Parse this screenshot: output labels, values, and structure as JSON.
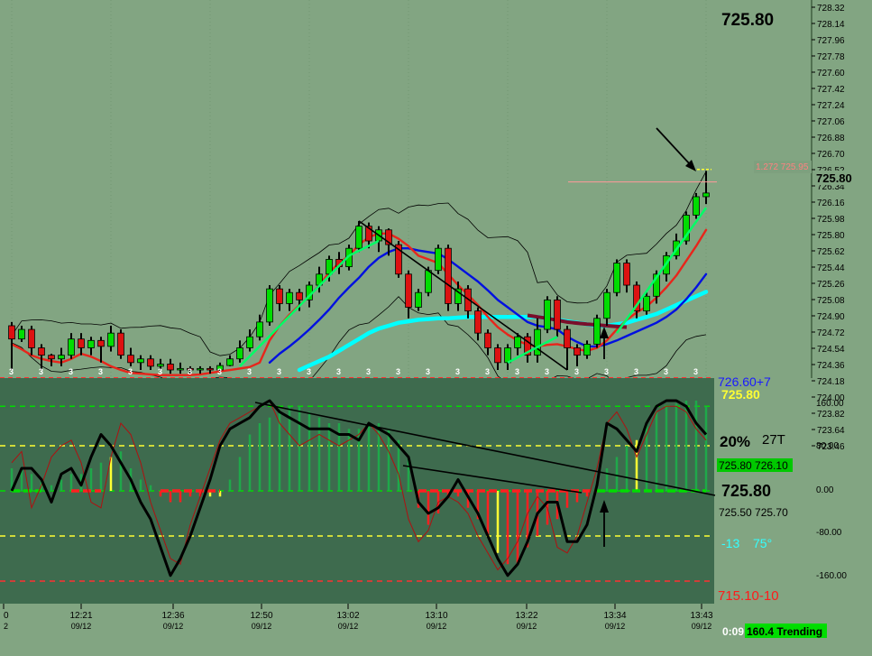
{
  "header": {
    "last_price": "725.80"
  },
  "colors": {
    "background": "#82a582",
    "indicator_bg": "#3e6b4e",
    "bull": "#00dd00",
    "bear": "#dd1111",
    "fast_ma": "#e8251b",
    "mid_ma": "#0010e0",
    "slow_ma": "#00ffff",
    "maroon_ma": "#7a0e2a",
    "trend_line": "#00ff66"
  },
  "price_axis": {
    "ticks": [
      "728.32",
      "728.14",
      "727.96",
      "727.78",
      "727.60",
      "727.42",
      "727.24",
      "727.06",
      "726.88",
      "726.70",
      "726.52",
      "726.34",
      "726.16",
      "725.98",
      "725.80",
      "725.62",
      "725.44",
      "725.26",
      "725.08",
      "724.90",
      "724.72",
      "724.54",
      "724.36",
      "724.18",
      "724.00",
      "723.82",
      "723.64",
      "723.46"
    ],
    "current_marker": "725.80",
    "fib_label": "1.272 725.95"
  },
  "osc_axis": {
    "ticks": [
      "160.00",
      "80.00",
      "0.00",
      "-80.00",
      "-160.00"
    ]
  },
  "time_axis": {
    "labels": [
      {
        "time": "0",
        "date": "2"
      },
      {
        "time": "12:21",
        "date": "09/12"
      },
      {
        "time": "12:36",
        "date": "09/12"
      },
      {
        "time": "12:50",
        "date": "09/12"
      },
      {
        "time": "13:02",
        "date": "09/12"
      },
      {
        "time": "13:10",
        "date": "09/12"
      },
      {
        "time": "13:22",
        "date": "09/12"
      },
      {
        "time": "13:34",
        "date": "09/12"
      },
      {
        "time": "13:43",
        "date": "09/12"
      }
    ]
  },
  "info_panel": {
    "line1": "726.60+7",
    "line2": "725.80",
    "line3_pct": "20%",
    "line3_t": "27T",
    "line4": "725.80 726.10",
    "line5": "725.80",
    "line6": "725.50 725.70",
    "line7_a": "-13",
    "line7_b": "75°",
    "line8": "715.10-10"
  },
  "status_bar": {
    "timer": "0:09",
    "trend": "160.4 Trending"
  },
  "chart_data": {
    "type": "bar",
    "panels": [
      {
        "name": "price",
        "ylim": [
          723.4,
          728.32
        ],
        "candles": [
          [
            724.0,
            723.82,
            724.05,
            723.4
          ],
          [
            723.82,
            723.95,
            724.0,
            723.78
          ],
          [
            723.95,
            723.7,
            724.0,
            723.6
          ],
          [
            723.7,
            723.6,
            723.75,
            723.4
          ],
          [
            723.6,
            723.55,
            723.62,
            723.45
          ],
          [
            723.55,
            723.6,
            723.7,
            723.45
          ],
          [
            723.6,
            723.82,
            723.9,
            723.55
          ],
          [
            723.82,
            723.7,
            723.9,
            723.6
          ],
          [
            723.7,
            723.8,
            723.85,
            723.6
          ],
          [
            723.8,
            723.72,
            723.85,
            723.5
          ],
          [
            723.72,
            723.9,
            724.0,
            723.65
          ],
          [
            723.9,
            723.6,
            723.95,
            723.55
          ],
          [
            723.6,
            723.5,
            723.7,
            723.45
          ],
          [
            723.5,
            723.55,
            723.6,
            723.4
          ],
          [
            723.55,
            723.45,
            723.6,
            723.4
          ],
          [
            723.45,
            723.48,
            723.55,
            723.4
          ],
          [
            723.48,
            723.4,
            723.55,
            723.35
          ],
          [
            723.4,
            723.42,
            723.5,
            723.35
          ],
          [
            723.42,
            723.4,
            723.45,
            723.35
          ],
          [
            723.4,
            723.42,
            723.45,
            723.35
          ],
          [
            723.42,
            723.4,
            723.45,
            723.35
          ],
          [
            723.4,
            723.46,
            723.5,
            723.38
          ],
          [
            723.46,
            723.55,
            723.6,
            723.45
          ],
          [
            723.55,
            723.7,
            723.8,
            723.5
          ],
          [
            723.7,
            723.85,
            723.95,
            723.65
          ],
          [
            723.85,
            724.05,
            724.15,
            723.8
          ],
          [
            724.05,
            724.5,
            724.55,
            724.0
          ],
          [
            724.5,
            724.3,
            724.55,
            724.2
          ],
          [
            724.3,
            724.45,
            724.5,
            724.2
          ],
          [
            724.45,
            724.35,
            724.5,
            724.2
          ],
          [
            724.35,
            724.55,
            724.6,
            724.25
          ],
          [
            724.55,
            724.7,
            724.8,
            724.45
          ],
          [
            724.7,
            724.9,
            724.95,
            724.6
          ],
          [
            724.9,
            724.8,
            725.0,
            724.7
          ],
          [
            724.8,
            725.05,
            725.1,
            724.75
          ],
          [
            725.05,
            725.35,
            725.42,
            725.0
          ],
          [
            725.35,
            725.15,
            725.4,
            725.05
          ],
          [
            725.15,
            725.3,
            725.35,
            725.0
          ],
          [
            725.3,
            725.1,
            725.32,
            724.95
          ],
          [
            725.1,
            724.7,
            725.15,
            724.65
          ],
          [
            724.7,
            724.25,
            724.75,
            724.1
          ],
          [
            724.25,
            724.45,
            724.5,
            724.2
          ],
          [
            724.45,
            724.75,
            724.8,
            724.4
          ],
          [
            724.75,
            725.05,
            725.1,
            724.7
          ],
          [
            725.05,
            724.3,
            725.1,
            724.2
          ],
          [
            724.3,
            724.5,
            724.6,
            724.2
          ],
          [
            724.5,
            724.2,
            724.55,
            724.1
          ],
          [
            724.2,
            723.9,
            724.25,
            723.8
          ],
          [
            723.9,
            723.7,
            723.95,
            723.6
          ],
          [
            723.7,
            723.5,
            723.75,
            723.4
          ],
          [
            723.5,
            723.7,
            723.75,
            723.4
          ],
          [
            723.7,
            723.85,
            723.9,
            723.6
          ],
          [
            723.85,
            723.6,
            723.9,
            723.5
          ],
          [
            723.6,
            723.95,
            724.1,
            723.5
          ],
          [
            723.95,
            724.35,
            724.4,
            723.9
          ],
          [
            724.35,
            723.95,
            724.4,
            723.85
          ],
          [
            723.95,
            723.7,
            724.0,
            723.4
          ],
          [
            723.7,
            723.6,
            723.75,
            723.45
          ],
          [
            723.6,
            723.75,
            723.8,
            723.55
          ],
          [
            723.75,
            724.1,
            724.15,
            723.7
          ],
          [
            724.1,
            724.45,
            724.5,
            724.0
          ],
          [
            724.45,
            724.85,
            724.9,
            724.4
          ],
          [
            724.85,
            724.55,
            724.9,
            724.45
          ],
          [
            724.55,
            724.2,
            724.6,
            724.1
          ],
          [
            724.2,
            724.4,
            724.45,
            724.15
          ],
          [
            724.4,
            724.7,
            724.75,
            724.3
          ],
          [
            724.7,
            724.95,
            725.0,
            724.6
          ],
          [
            724.95,
            725.15,
            725.25,
            724.9
          ],
          [
            725.15,
            725.5,
            725.55,
            725.1
          ],
          [
            725.5,
            725.75,
            725.8,
            725.45
          ],
          [
            725.75,
            725.8,
            726.1,
            725.65
          ]
        ],
        "fib_level": 725.95,
        "moving_averages": [
          {
            "key": "fast",
            "values": [
              723.75,
              723.68,
              723.6,
              723.55,
              723.52,
              723.5,
              723.55,
              723.62,
              723.58,
              723.52,
              723.45,
              723.4,
              723.36,
              723.35,
              723.34,
              723.33,
              723.33,
              723.33,
              723.33,
              723.34,
              723.36,
              723.38,
              723.4,
              723.42,
              723.44,
              723.5,
              723.8,
              724.0,
              724.15,
              724.28,
              724.4,
              724.55,
              724.72,
              724.85,
              724.95,
              725.1,
              725.2,
              725.25,
              725.25,
              725.18,
              725.08,
              724.95,
              724.9,
              724.85,
              724.7,
              724.55,
              724.42,
              724.28,
              724.12,
              723.98,
              723.88,
              723.8,
              723.74,
              723.72,
              723.74,
              723.75,
              723.72,
              723.68,
              723.66,
              723.7,
              723.8,
              723.95,
              724.08,
              724.18,
              724.26,
              724.38,
              724.52,
              724.68,
              724.88,
              725.08,
              725.3
            ]
          },
          {
            "key": "mid",
            "values": [
              null,
              null,
              null,
              null,
              null,
              null,
              null,
              null,
              null,
              null,
              null,
              null,
              null,
              null,
              null,
              null,
              null,
              null,
              null,
              null,
              null,
              null,
              null,
              null,
              null,
              null,
              723.5,
              723.62,
              723.72,
              723.83,
              723.95,
              724.08,
              724.22,
              724.38,
              724.52,
              724.65,
              724.8,
              724.92,
              725.0,
              725.05,
              725.05,
              725.02,
              725.0,
              724.98,
              724.9,
              724.8,
              724.7,
              724.6,
              724.48,
              724.35,
              724.25,
              724.15,
              724.05,
              724.0,
              723.98,
              723.95,
              723.85,
              723.78,
              723.72,
              723.72,
              723.75,
              723.8,
              723.86,
              723.92,
              723.98,
              724.04,
              724.12,
              724.22,
              724.36,
              724.52,
              724.7
            ]
          },
          {
            "key": "slow",
            "values": [
              null,
              null,
              null,
              null,
              null,
              null,
              null,
              null,
              null,
              null,
              null,
              null,
              null,
              null,
              null,
              null,
              null,
              null,
              null,
              null,
              null,
              null,
              null,
              null,
              null,
              null,
              null,
              null,
              null,
              723.4,
              723.46,
              723.52,
              723.58,
              723.66,
              723.74,
              723.82,
              723.9,
              723.96,
              724.0,
              724.04,
              724.06,
              724.08,
              724.09,
              724.1,
              724.1,
              724.11,
              724.12,
              724.12,
              724.12,
              724.12,
              724.12,
              724.12,
              724.12,
              724.12,
              724.1,
              724.08,
              724.06,
              724.04,
              724.02,
              724.0,
              724.0,
              724.02,
              724.04,
              724.08,
              724.12,
              724.16,
              724.22,
              724.28,
              724.34,
              724.4,
              724.46
            ]
          }
        ],
        "maroon_ma": {
          "x": [
            52,
            54,
            56,
            58,
            60,
            62
          ],
          "values": [
            724.14,
            724.1,
            724.05,
            724.02,
            724.0,
            723.98
          ]
        }
      },
      {
        "name": "oscillator",
        "ylim": [
          -200,
          200
        ],
        "histogram": [
          40,
          40,
          30,
          20,
          10,
          20,
          30,
          30,
          40,
          50,
          60,
          70,
          40,
          20,
          10,
          -10,
          -20,
          -20,
          -10,
          -10,
          -10,
          -10,
          20,
          60,
          100,
          120,
          130,
          140,
          150,
          150,
          140,
          130,
          120,
          120,
          110,
          110,
          120,
          120,
          110,
          90,
          60,
          -30,
          -60,
          -40,
          -10,
          -10,
          -30,
          -50,
          -80,
          -110,
          -130,
          -130,
          -100,
          -80,
          -60,
          -50,
          -30,
          -20,
          -10,
          10,
          40,
          60,
          80,
          90,
          120,
          140,
          150,
          155,
          160,
          160,
          150
        ],
        "histogram_colors": [
          "g",
          "g",
          "g",
          "g",
          "g",
          "g",
          "g",
          "g",
          "g",
          "g",
          "y",
          "g",
          "g",
          "g",
          "g",
          "r",
          "r",
          "r",
          "r",
          "r",
          "y",
          "y",
          "g",
          "g",
          "g",
          "g",
          "g",
          "g",
          "g",
          "g",
          "g",
          "g",
          "g",
          "g",
          "g",
          "g",
          "g",
          "g",
          "g",
          "g",
          "g",
          "r",
          "r",
          "r",
          "r",
          "r",
          "r",
          "r",
          "r",
          "y",
          "r",
          "r",
          "r",
          "r",
          "r",
          "r",
          "r",
          "r",
          "r",
          "g",
          "g",
          "g",
          "g",
          "y",
          "g",
          "g",
          "g",
          "g",
          "g",
          "g",
          "g"
        ],
        "thick_line": [
          0,
          40,
          40,
          20,
          -20,
          30,
          40,
          10,
          60,
          100,
          80,
          50,
          20,
          -20,
          -50,
          -100,
          -150,
          -120,
          -80,
          -30,
          20,
          80,
          110,
          120,
          130,
          150,
          160,
          140,
          130,
          120,
          110,
          110,
          110,
          100,
          100,
          90,
          120,
          110,
          100,
          80,
          60,
          -20,
          -40,
          -30,
          -10,
          20,
          -10,
          -40,
          -80,
          -120,
          -150,
          -130,
          -90,
          -40,
          -20,
          -20,
          -90,
          -90,
          -60,
          10,
          120,
          110,
          90,
          70,
          120,
          150,
          160,
          160,
          150,
          120,
          100
        ],
        "thin_line": [
          50,
          70,
          -30,
          10,
          60,
          80,
          90,
          50,
          -20,
          -30,
          60,
          120,
          100,
          50,
          -20,
          -70,
          -120,
          -130,
          -60,
          -10,
          40,
          90,
          120,
          130,
          140,
          150,
          160,
          120,
          100,
          80,
          90,
          100,
          90,
          80,
          90,
          100,
          120,
          100,
          70,
          30,
          -50,
          -90,
          -70,
          -20,
          -10,
          -20,
          -40,
          -80,
          -110,
          -140,
          -120,
          -90,
          -40,
          -10,
          -30,
          -100,
          -110,
          -80,
          -20,
          40,
          120,
          140,
          110,
          60,
          100,
          140,
          150,
          150,
          140,
          110,
          90
        ],
        "levels": [
          150,
          80,
          0,
          -80,
          -160
        ]
      }
    ],
    "annotations": [
      "arrow-down-near-high",
      "arrow-up-at-low",
      "trend-line-price-decline",
      "trend-line-oscillator-upper",
      "trend-line-oscillator-lower"
    ],
    "xlabel": "",
    "ylabel": ""
  }
}
